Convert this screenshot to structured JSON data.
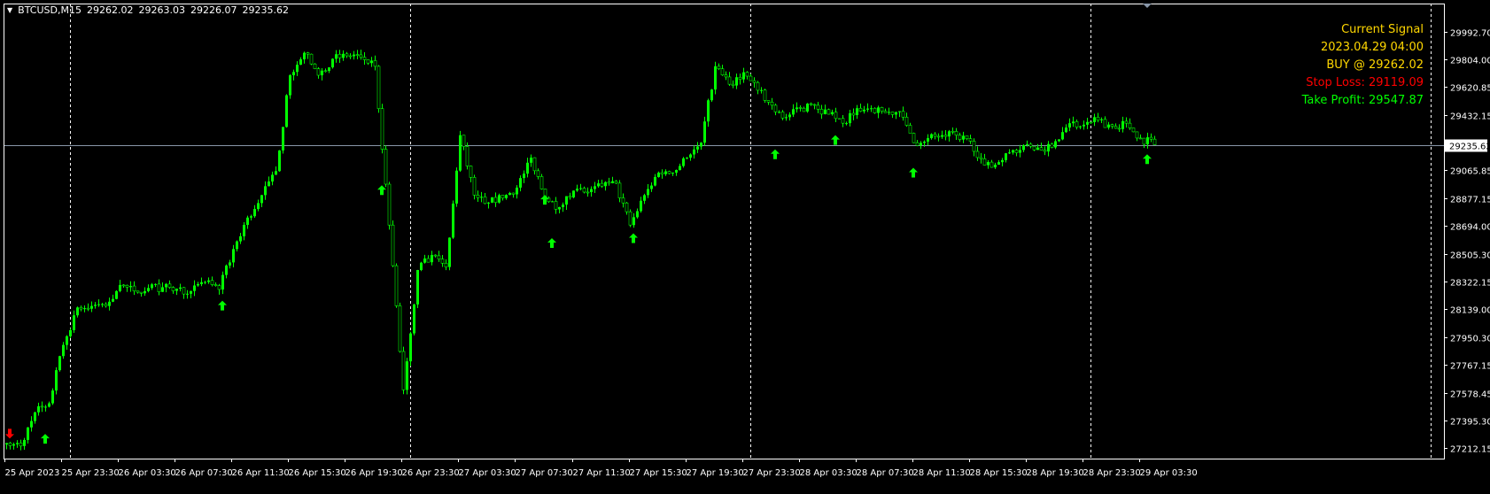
{
  "header": {
    "symbol": "BTCUSD,M15",
    "open": "29262.02",
    "high": "29263.03",
    "low": "29226.07",
    "close": "29235.62"
  },
  "signal": {
    "title": "Current Signal",
    "time": "2023.04.29 04:00",
    "entry": "BUY @ 29262.02",
    "stop_loss": "Stop Loss: 29119.09",
    "take_profit": "Take Profit: 29547.87",
    "colors": {
      "title": "#FFD700",
      "stop_loss": "#FF0000",
      "take_profit": "#00FF00"
    }
  },
  "current_price_label": "29235.62",
  "chart_data": {
    "type": "candlestick",
    "timeframe": "M15",
    "price_ticks": [
      "29992.70",
      "29804.00",
      "29620.85",
      "29432.15",
      "29235.62",
      "29065.85",
      "28877.15",
      "28694.00",
      "28505.30",
      "28322.15",
      "28139.00",
      "27950.30",
      "27767.15",
      "27578.45",
      "27395.30",
      "27212.15"
    ],
    "time_ticks": [
      "25 Apr 2023",
      "25 Apr 23:30",
      "26 Apr 03:30",
      "26 Apr 07:30",
      "26 Apr 11:30",
      "26 Apr 15:30",
      "26 Apr 19:30",
      "26 Apr 23:30",
      "27 Apr 03:30",
      "27 Apr 07:30",
      "27 Apr 11:30",
      "27 Apr 15:30",
      "27 Apr 19:30",
      "27 Apr 23:30",
      "28 Apr 03:30",
      "28 Apr 07:30",
      "28 Apr 11:30",
      "28 Apr 15:30",
      "28 Apr 19:30",
      "28 Apr 23:30",
      "29 Apr 03:30"
    ],
    "start": "25 Apr 19:30",
    "hourly_close": [
      27245,
      27225,
      27450,
      27510,
      27900,
      28150,
      28160,
      28160,
      28300,
      28260,
      28280,
      28285,
      28275,
      28260,
      28320,
      28270,
      28540,
      28750,
      28900,
      29060,
      29700,
      29850,
      29700,
      29810,
      29830,
      29820,
      29760,
      28700,
      27600,
      28400,
      28500,
      28420,
      29300,
      28900,
      28850,
      28880,
      28950,
      29150,
      28880,
      28820,
      28930,
      28920,
      28960,
      28980,
      28700,
      28900,
      29050,
      29050,
      29150,
      29250,
      29760,
      29640,
      29720,
      29600,
      29500,
      29420,
      29480,
      29500,
      29440,
      29380,
      29480,
      29480,
      29450,
      29460,
      29250,
      29280,
      29300,
      29300,
      29260,
      29100,
      29120,
      29200,
      29240,
      29200,
      29260,
      29380,
      29370,
      29400,
      29360,
      29380,
      29280,
      29235.62
    ],
    "day_separators": [
      "26 Apr 00:00",
      "27 Apr 00:00",
      "28 Apr 00:00",
      "29 Apr 00:00",
      "30 Apr 00:00"
    ],
    "current_price": 29235.62,
    "signals": [
      {
        "type": "sell",
        "time": "25 Apr 19:45",
        "price": 27310
      },
      {
        "type": "buy",
        "time": "25 Apr 22:15",
        "price": 27270
      },
      {
        "type": "buy",
        "time": "26 Apr 10:45",
        "price": 28160
      },
      {
        "type": "buy",
        "time": "26 Apr 22:00",
        "price": 28930
      },
      {
        "type": "buy",
        "time": "27 Apr 09:30",
        "price": 28866
      },
      {
        "type": "buy",
        "time": "27 Apr 10:00",
        "price": 28577
      },
      {
        "type": "buy",
        "time": "27 Apr 15:45",
        "price": 28610
      },
      {
        "type": "buy",
        "time": "28 Apr 01:45",
        "price": 29170
      },
      {
        "type": "buy",
        "time": "28 Apr 06:00",
        "price": 29265
      },
      {
        "type": "buy",
        "time": "28 Apr 11:30",
        "price": 29047
      },
      {
        "type": "buy",
        "time": "29 Apr 04:00",
        "price": 29137
      }
    ],
    "colors": {
      "candle": "#00FF00",
      "background": "#000000",
      "buy_arrow": "#00FF00",
      "sell_arrow": "#FF0000",
      "price_line": "#8896A8"
    }
  }
}
